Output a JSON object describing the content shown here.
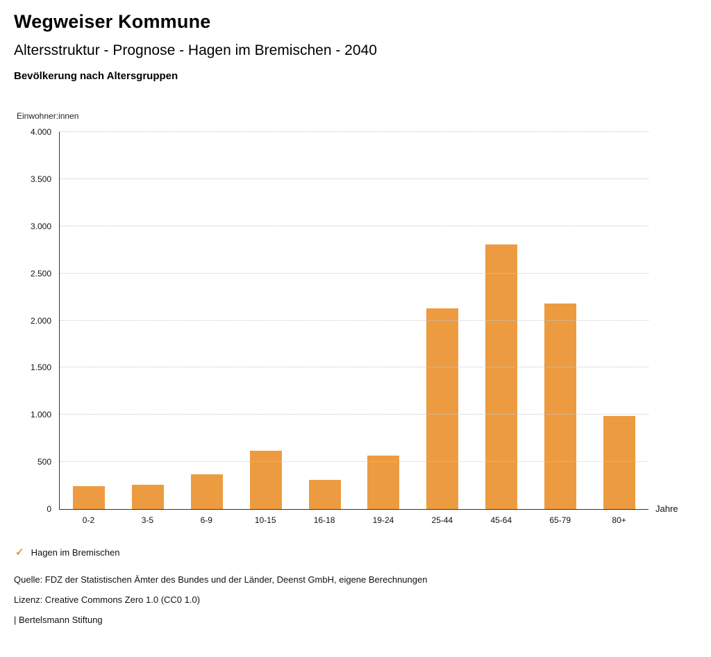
{
  "header": {
    "title": "Wegweiser Kommune",
    "subtitle": "Altersstruktur - Prognose - Hagen im Bremischen - 2040",
    "chart_title": "Bevölkerung nach Altersgruppen"
  },
  "chart_data": {
    "type": "bar",
    "title": "Bevölkerung nach Altersgruppen",
    "unit_label": "Einwohner:innen",
    "xlabel": "Jahre",
    "categories": [
      "0-2",
      "3-5",
      "6-9",
      "10-15",
      "16-18",
      "19-24",
      "25-44",
      "45-64",
      "65-79",
      "80+"
    ],
    "values": [
      245,
      260,
      370,
      620,
      310,
      570,
      2130,
      2810,
      2180,
      990
    ],
    "ylim": [
      0,
      4000
    ],
    "ytick_step": 500,
    "yticks": [
      {
        "value": 0,
        "label": "0"
      },
      {
        "value": 500,
        "label": "500"
      },
      {
        "value": 1000,
        "label": "1.000"
      },
      {
        "value": 1500,
        "label": "1.500"
      },
      {
        "value": 2000,
        "label": "2.000"
      },
      {
        "value": 2500,
        "label": "2.500"
      },
      {
        "value": 3000,
        "label": "3.000"
      },
      {
        "value": 3500,
        "label": "3.500"
      },
      {
        "value": 4000,
        "label": "4.000"
      }
    ],
    "grid": true,
    "bar_color": "#ED9B40",
    "legend_position": "bottom",
    "series_name": "Hagen im Bremischen"
  },
  "legend": {
    "check_icon": "✓",
    "check_color": "#E8912F",
    "label": "Hagen im Bremischen"
  },
  "footer": {
    "source": "Quelle: FDZ der Statistischen Ämter des Bundes und der Länder, Deenst GmbH, eigene Berechnungen",
    "license": "Lizenz: Creative Commons Zero 1.0 (CC0 1.0)",
    "brand": "| Bertelsmann Stiftung"
  }
}
